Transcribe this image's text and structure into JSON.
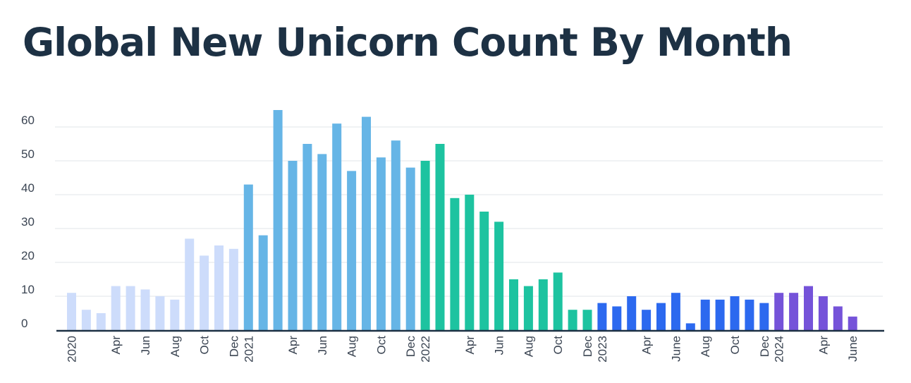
{
  "chart_data": {
    "type": "bar",
    "title": "Global New Unicorn Count By Month",
    "xlabel": "",
    "ylabel": "",
    "ylim": [
      0,
      65
    ],
    "yticks": [
      0,
      10,
      20,
      30,
      40,
      50,
      60
    ],
    "grid": true,
    "legend": "none",
    "categories": [
      "2020-01",
      "2020-02",
      "2020-03",
      "2020-04",
      "2020-05",
      "2020-06",
      "2020-07",
      "2020-08",
      "2020-09",
      "2020-10",
      "2020-11",
      "2020-12",
      "2021-01",
      "2021-02",
      "2021-03",
      "2021-04",
      "2021-05",
      "2021-06",
      "2021-07",
      "2021-08",
      "2021-09",
      "2021-10",
      "2021-11",
      "2021-12",
      "2022-01",
      "2022-02",
      "2022-03",
      "2022-04",
      "2022-05",
      "2022-06",
      "2022-07",
      "2022-08",
      "2022-09",
      "2022-10",
      "2022-11",
      "2022-12",
      "2023-01",
      "2023-02",
      "2023-03",
      "2023-04",
      "2023-05",
      "2023-06",
      "2023-07",
      "2023-08",
      "2023-09",
      "2023-10",
      "2023-11",
      "2023-12",
      "2024-01",
      "2024-02",
      "2024-03",
      "2024-04",
      "2024-05",
      "2024-06"
    ],
    "values": [
      11,
      6,
      5,
      13,
      13,
      12,
      10,
      9,
      27,
      22,
      25,
      24,
      43,
      28,
      65,
      50,
      55,
      52,
      61,
      47,
      63,
      51,
      56,
      48,
      50,
      55,
      39,
      40,
      35,
      32,
      15,
      13,
      15,
      17,
      6,
      6,
      8,
      7,
      10,
      6,
      8,
      11,
      2,
      9,
      9,
      10,
      9,
      8,
      11,
      11,
      13,
      10,
      7,
      4
    ],
    "year_colors": {
      "2020": "#cddcfb",
      "2021": "#66b5e6",
      "2022": "#1dc3a0",
      "2023": "#2c69ef",
      "2024": "#7553d9"
    },
    "tick_labels": [
      {
        "category": "2020-01",
        "label": "2020"
      },
      {
        "category": "2020-04",
        "label": "Apr"
      },
      {
        "category": "2020-06",
        "label": "Jun"
      },
      {
        "category": "2020-08",
        "label": "Aug"
      },
      {
        "category": "2020-10",
        "label": "Oct"
      },
      {
        "category": "2020-12",
        "label": "Dec"
      },
      {
        "category": "2021-01",
        "label": "2021"
      },
      {
        "category": "2021-04",
        "label": "Apr"
      },
      {
        "category": "2021-06",
        "label": "Jun"
      },
      {
        "category": "2021-08",
        "label": "Aug"
      },
      {
        "category": "2021-10",
        "label": "Oct"
      },
      {
        "category": "2021-12",
        "label": "Dec"
      },
      {
        "category": "2022-01",
        "label": "2022"
      },
      {
        "category": "2022-04",
        "label": "Apr"
      },
      {
        "category": "2022-06",
        "label": "Jun"
      },
      {
        "category": "2022-08",
        "label": "Aug"
      },
      {
        "category": "2022-10",
        "label": "Oct"
      },
      {
        "category": "2022-12",
        "label": "Dec"
      },
      {
        "category": "2023-01",
        "label": "2023"
      },
      {
        "category": "2023-04",
        "label": "Apr"
      },
      {
        "category": "2023-06",
        "label": "June"
      },
      {
        "category": "2023-08",
        "label": "Aug"
      },
      {
        "category": "2023-10",
        "label": "Oct"
      },
      {
        "category": "2023-12",
        "label": "Dec"
      },
      {
        "category": "2024-01",
        "label": "2024"
      },
      {
        "category": "2024-04",
        "label": "Apr"
      },
      {
        "category": "2024-06",
        "label": "June"
      }
    ]
  },
  "colors": {
    "title": "#1d3144",
    "axis": "#1d3144",
    "grid": "#e6e9ee",
    "tick_text": "#3a4452"
  }
}
